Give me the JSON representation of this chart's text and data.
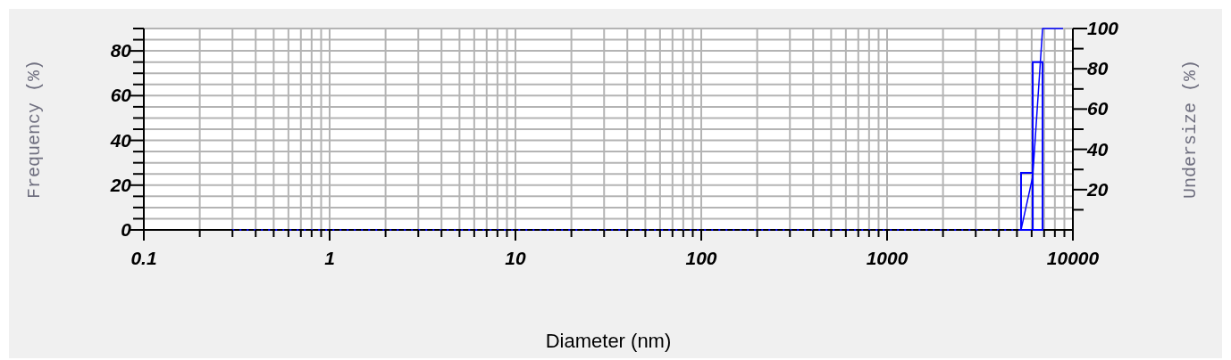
{
  "chart_data": {
    "type": "histogram",
    "xlabel": "Diameter (nm)",
    "ylabel": "Frequency (%)",
    "y2label": "Undersize (%)",
    "log": "x",
    "grid": true,
    "bins": [
      5260,
      6080,
      6870
    ],
    "values": [
      25.5,
      75
    ],
    "color": "#0000ff",
    "series": [
      {
        "type": "line",
        "axis": "y2",
        "color": "#0000ff",
        "line_style": "dotted",
        "x": [
          0.3,
          5260
        ],
        "values": [
          0,
          0
        ]
      },
      {
        "type": "line",
        "axis": "y2",
        "color": "#0000ff",
        "line_style": "solid",
        "x": [
          5260,
          6080,
          6870,
          8850
        ],
        "values": [
          0,
          26.5,
          100,
          100
        ]
      }
    ],
    "xlim": [
      0.1,
      10000
    ],
    "xticks": [
      0.1,
      {
        "value": 0.2,
        "label": null
      },
      {
        "value": 0.3,
        "label": null
      },
      {
        "value": 0.4,
        "label": null
      },
      {
        "value": 0.5,
        "label": null
      },
      {
        "value": 0.6,
        "label": null
      },
      {
        "value": 0.7,
        "label": null
      },
      {
        "value": 0.8,
        "label": null
      },
      {
        "value": 0.9,
        "label": null
      },
      1,
      {
        "value": 2,
        "label": null
      },
      {
        "value": 3,
        "label": null
      },
      {
        "value": 4,
        "label": null
      },
      {
        "value": 5,
        "label": null
      },
      {
        "value": 6,
        "label": null
      },
      {
        "value": 7,
        "label": null
      },
      {
        "value": 8,
        "label": null
      },
      {
        "value": 9,
        "label": null
      },
      10,
      {
        "value": 20,
        "label": null
      },
      {
        "value": 30,
        "label": null
      },
      {
        "value": 40,
        "label": null
      },
      {
        "value": 50,
        "label": null
      },
      {
        "value": 60,
        "label": null
      },
      {
        "value": 70,
        "label": null
      },
      {
        "value": 80,
        "label": null
      },
      {
        "value": 90,
        "label": null
      },
      100,
      {
        "value": 200,
        "label": null
      },
      {
        "value": 300,
        "label": null
      },
      {
        "value": 400,
        "label": null
      },
      {
        "value": 500,
        "label": null
      },
      {
        "value": 600,
        "label": null
      },
      {
        "value": 700,
        "label": null
      },
      {
        "value": 800,
        "label": null
      },
      {
        "value": 900,
        "label": null
      },
      1000,
      {
        "value": 2000,
        "label": null
      },
      {
        "value": 3000,
        "label": null
      },
      {
        "value": 4000,
        "label": null
      },
      {
        "value": 5000,
        "label": null
      },
      {
        "value": 6000,
        "label": null
      },
      {
        "value": 7000,
        "label": null
      },
      {
        "value": 8000,
        "label": null
      },
      {
        "value": 9000,
        "label": null
      },
      10000
    ],
    "ylim": [
      0,
      90
    ],
    "yticks": [
      0,
      {
        "value": 5,
        "label": null
      },
      {
        "value": 10,
        "label": null
      },
      {
        "value": 15,
        "label": null
      },
      20,
      {
        "value": 25,
        "label": null
      },
      {
        "value": 30,
        "label": null
      },
      {
        "value": 35,
        "label": null
      },
      40,
      {
        "value": 45,
        "label": null
      },
      {
        "value": 50,
        "label": null
      },
      {
        "value": 55,
        "label": null
      },
      60,
      {
        "value": 65,
        "label": null
      },
      {
        "value": 70,
        "label": null
      },
      {
        "value": 75,
        "label": null
      },
      80,
      {
        "value": 85,
        "label": null
      },
      {
        "value": 90,
        "label": null
      }
    ],
    "y2lim": [
      0,
      100
    ],
    "y2ticks": [
      {
        "value": 10,
        "label": null
      },
      20,
      {
        "value": 30,
        "label": null
      },
      40,
      {
        "value": 50,
        "label": null
      },
      60,
      {
        "value": 70,
        "label": null
      },
      80,
      {
        "value": 90,
        "label": null
      },
      100
    ]
  }
}
